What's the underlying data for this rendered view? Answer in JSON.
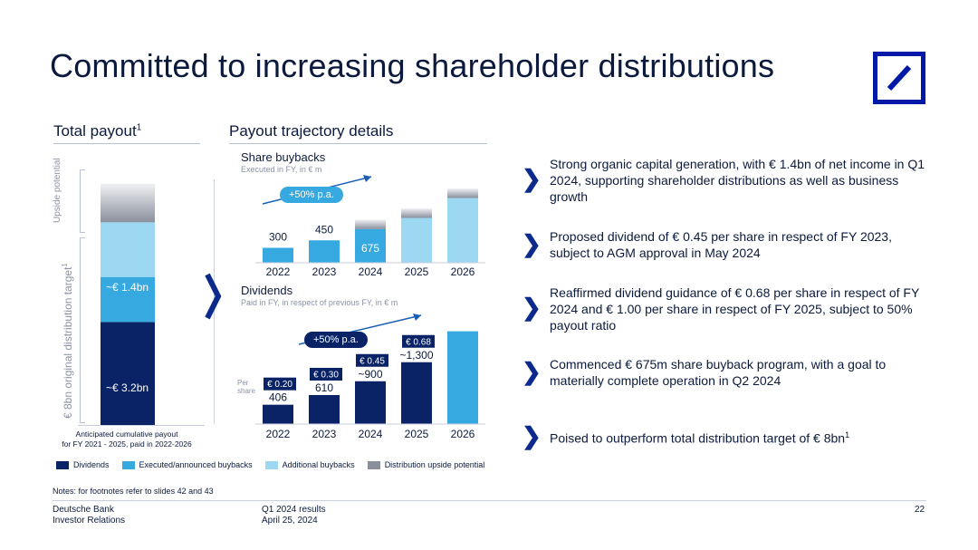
{
  "title": "Committed to increasing shareholder distributions",
  "colors": {
    "dividends": "#0a2266",
    "executed": "#36a9e1",
    "additional": "#9dd8f2",
    "upside": "#8a8f9c",
    "brand": "#0018a8"
  },
  "total_payout": {
    "heading": "Total payout",
    "heading_sup": "1",
    "upside_label": "Upside potential",
    "target_label": "€ 8bn original distribution target",
    "target_sup": "1",
    "seg_exec_label": "~€ 1.4bn",
    "seg_div_label": "~€ 3.2bn",
    "caption_line1": "Anticipated cumulative payout",
    "caption_line2": "for FY 2021 - 2025, paid in 2022-2026"
  },
  "trajectory": {
    "heading": "Payout trajectory details",
    "buybacks_title": "Share buybacks",
    "buybacks_note": "Executed in FY, in € m",
    "buybacks_growth": "+50% p.a.",
    "dividends_title": "Dividends",
    "dividends_note": "Paid in FY, in respect of previous FY, in € m",
    "dividends_growth": "+50% p.a.",
    "per_share_label": "Per share"
  },
  "chart_data": [
    {
      "type": "bar",
      "title": "Share buybacks",
      "subtitle": "Executed in FY, in € m",
      "categories": [
        "2022",
        "2023",
        "2024",
        "2025",
        "2026"
      ],
      "series": [
        {
          "name": "Executed/announced buybacks",
          "values": [
            300,
            450,
            675,
            null,
            null
          ]
        },
        {
          "name": "Additional buybacks",
          "values": [
            null,
            null,
            null,
            900,
            1300
          ]
        },
        {
          "name": "Distribution upside potential",
          "values": [
            null,
            null,
            200,
            200,
            200
          ]
        }
      ],
      "data_labels": [
        "300",
        "450",
        "675",
        "",
        ""
      ],
      "annotation": "+50% p.a."
    },
    {
      "type": "bar",
      "title": "Dividends",
      "subtitle": "Paid in FY, in respect of previous FY, in € m",
      "categories": [
        "2022",
        "2023",
        "2024",
        "2025",
        "2026"
      ],
      "series": [
        {
          "name": "Dividends",
          "values": [
            406,
            610,
            900,
            1300,
            null
          ]
        },
        {
          "name": "Executed/announced buybacks",
          "values": [
            null,
            null,
            null,
            null,
            1950
          ]
        }
      ],
      "data_labels": [
        "406",
        "610",
        "~900",
        "~1,300",
        ""
      ],
      "per_share": [
        "€ 0.20",
        "€ 0.30",
        "€ 0.45",
        "€ 0.68",
        ""
      ],
      "annotation": "+50% p.a."
    },
    {
      "type": "bar",
      "title": "Total payout",
      "categories": [
        "FY 2021 - 2025"
      ],
      "series": [
        {
          "name": "Dividends",
          "values": [
            3.2
          ]
        },
        {
          "name": "Executed/announced buybacks",
          "values": [
            1.4
          ]
        },
        {
          "name": "Additional buybacks",
          "values": [
            1.7
          ]
        },
        {
          "name": "Distribution upside potential",
          "values": [
            1.2
          ]
        }
      ],
      "data_labels": [
        "~€ 3.2bn",
        "~€ 1.4bn",
        "",
        ""
      ]
    }
  ],
  "bullets": [
    "Strong organic capital generation, with € 1.4bn of net income in Q1 2024, supporting shareholder distributions as well as business growth",
    "Proposed dividend of € 0.45 per share in respect of FY 2023, subject to AGM approval in May 2024",
    "Reaffirmed dividend guidance of € 0.68 per share in respect of FY 2024 and € 1.00 per share in respect of FY 2025, subject to 50% payout ratio",
    "Commenced € 675m share buyback program, with a goal to materially complete operation in Q2 2024",
    "Poised to outperform total distribution target of € 8bn"
  ],
  "bullet5_sup": "1",
  "legend": [
    "Dividends",
    "Executed/announced buybacks",
    "Additional buybacks",
    "Distribution upside potential"
  ],
  "notes": "Notes: for footnotes refer to slides 42 and 43",
  "footer": {
    "company": "Deutsche Bank",
    "dept": "Investor Relations",
    "report": "Q1 2024 results",
    "date": "April 25, 2024",
    "page": "22"
  },
  "icons": {
    "bullet": "chevron-right-icon",
    "logo": "deutsche-bank-logo"
  }
}
